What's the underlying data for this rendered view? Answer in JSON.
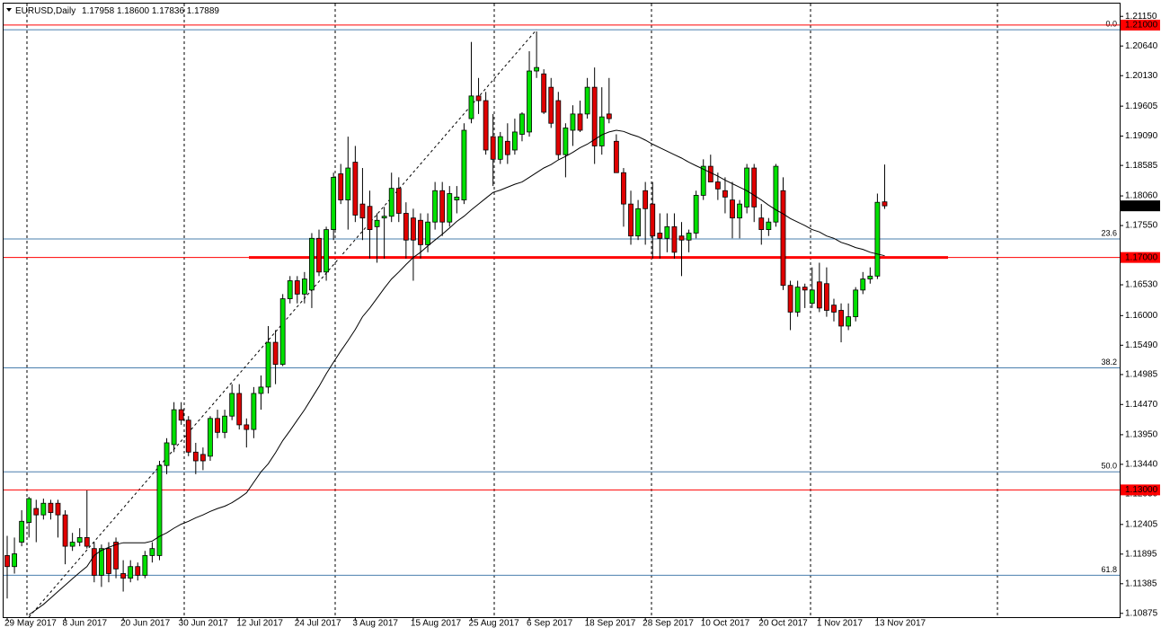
{
  "header": {
    "symbol": "EURUSD,Daily",
    "ohlc": "1.17958 1.18600 1.17836 1.17889"
  },
  "chart_data": {
    "type": "candlestick",
    "categories": [
      "29 May 2017",
      null,
      null,
      null,
      null,
      null,
      null,
      null,
      "8 Jun 2017",
      null,
      null,
      null,
      null,
      null,
      null,
      null,
      "20 Jun 2017",
      null,
      null,
      null,
      null,
      null,
      null,
      null,
      "30 Jun 2017",
      null,
      null,
      null,
      null,
      null,
      null,
      null,
      "12 Jul 2017",
      null,
      null,
      null,
      null,
      null,
      null,
      null,
      "24 Jul 2017",
      null,
      null,
      null,
      null,
      null,
      null,
      null,
      "3 Aug 2017",
      null,
      null,
      null,
      null,
      null,
      null,
      null,
      "15 Aug 2017",
      null,
      null,
      null,
      null,
      null,
      null,
      null,
      "25 Aug 2017",
      null,
      null,
      null,
      null,
      null,
      null,
      null,
      "6 Sep 2017",
      null,
      null,
      null,
      null,
      null,
      null,
      null,
      "18 Sep 2017",
      null,
      null,
      null,
      null,
      null,
      null,
      null,
      "28 Sep 2017",
      null,
      null,
      null,
      null,
      null,
      null,
      null,
      "10 Oct 2017",
      null,
      null,
      null,
      null,
      null,
      null,
      null,
      "20 Oct 2017",
      null,
      null,
      null,
      null,
      null,
      null,
      null,
      "1 Nov 2017",
      null,
      null,
      null,
      null,
      null,
      null,
      null,
      "13 Nov 2017",
      null
    ],
    "open": [
      1.1187,
      1.1168,
      1.121,
      1.1244,
      1.1268,
      1.1257,
      1.1277,
      1.1277,
      1.1257,
      1.1203,
      1.121,
      1.1218,
      1.1199,
      1.1153,
      1.1199,
      1.121,
      1.1156,
      1.1148,
      1.1168,
      1.1153,
      1.1187,
      1.1187,
      1.1342,
      1.1378,
      1.1438,
      1.142,
      1.1365,
      1.1361,
      1.1358,
      1.1423,
      1.1399,
      1.1427,
      1.1466,
      1.1412,
      1.1404,
      1.1466,
      1.1477,
      1.1554,
      1.1516,
      1.1629,
      1.166,
      1.1637,
      1.1644,
      1.1733,
      1.1675,
      1.1748,
      1.1844,
      1.1799,
      1.1864,
      1.1792,
      1.1788,
      1.1753,
      1.1768,
      1.1771,
      1.1819,
      1.1776,
      1.1768,
      1.1764,
      1.1722,
      1.1761,
      1.1815,
      1.1761,
      1.1799,
      1.1799,
      1.1939,
      1.1978,
      1.197,
      1.1908,
      1.1869,
      1.19,
      1.1885,
      1.1912,
      1.1916,
      1.2021,
      1.2016,
      1.1993,
      1.197,
      1.1877,
      1.1919,
      1.1947,
      1.1947,
      1.1993,
      1.1892,
      1.1947,
      1.19,
      1.1846,
      1.1792,
      1.1737,
      1.1815,
      1.1792,
      1.1742,
      1.1733,
      1.1753,
      1.1737,
      1.173,
      1.1742,
      1.1807,
      1.1857,
      1.183,
      1.1815,
      1.1799,
      1.1768,
      1.1787,
      1.1854,
      1.1768,
      1.1748,
      1.1761,
      1.1815,
      1.1652,
      1.1606,
      1.1649,
      1.1621,
      1.1658,
      1.1655,
      1.1618,
      1.1609,
      1.1582,
      1.1598,
      1.1644,
      1.1663,
      1.1668,
      1.17958
    ],
    "high": [
      1.1221,
      1.1218,
      1.1265,
      1.1288,
      1.1283,
      1.1285,
      1.1283,
      1.1283,
      1.1265,
      1.1226,
      1.1234,
      1.1299,
      1.121,
      1.1206,
      1.121,
      1.1218,
      1.1179,
      1.1179,
      1.1175,
      1.1195,
      1.121,
      1.135,
      1.1389,
      1.1451,
      1.1451,
      1.1427,
      1.1381,
      1.1373,
      1.1427,
      1.1438,
      1.1438,
      1.1482,
      1.1482,
      1.1423,
      1.1477,
      1.1497,
      1.1582,
      1.1575,
      1.1637,
      1.1668,
      1.1668,
      1.1675,
      1.1742,
      1.1748,
      1.1753,
      1.1846,
      1.1861,
      1.1908,
      1.1892,
      1.1854,
      1.1815,
      1.1776,
      1.1787,
      1.1846,
      1.1838,
      1.1795,
      1.1784,
      1.1776,
      1.1776,
      1.183,
      1.183,
      1.1823,
      1.1823,
      1.1931,
      1.2071,
      1.2009,
      1.1985,
      1.1947,
      1.1916,
      1.1931,
      1.1939,
      1.195,
      1.2055,
      1.2089,
      1.2024,
      1.2009,
      1.1985,
      1.1931,
      1.1962,
      1.197,
      1.2009,
      1.2027,
      1.1993,
      1.2009,
      1.1912,
      1.1854,
      1.1815,
      1.1799,
      1.183,
      1.183,
      1.1776,
      1.1776,
      1.1776,
      1.1761,
      1.1748,
      1.1815,
      1.1869,
      1.1877,
      1.1846,
      1.1838,
      1.183,
      1.1799,
      1.1861,
      1.1861,
      1.1792,
      1.1768,
      1.1861,
      1.1838,
      1.166,
      1.166,
      1.1655,
      1.1683,
      1.1691,
      1.1683,
      1.1629,
      1.1621,
      1.1621,
      1.1649,
      1.1675,
      1.1683,
      1.181,
      1.186
    ],
    "low": [
      1.1113,
      1.1156,
      1.1203,
      1.1218,
      1.121,
      1.1249,
      1.1249,
      1.1218,
      1.1172,
      1.1195,
      1.1203,
      1.1199,
      1.1141,
      1.1133,
      1.1141,
      1.1148,
      1.1125,
      1.1141,
      1.1144,
      1.1148,
      1.1175,
      1.1179,
      1.1327,
      1.1365,
      1.1412,
      1.1358,
      1.1327,
      1.1334,
      1.135,
      1.1389,
      1.1389,
      1.142,
      1.1404,
      1.1373,
      1.1389,
      1.1438,
      1.1466,
      1.1482,
      1.1513,
      1.1621,
      1.1621,
      1.1621,
      1.1613,
      1.1668,
      1.166,
      1.173,
      1.1792,
      1.1748,
      1.1761,
      1.173,
      1.1698,
      1.1691,
      1.1698,
      1.1761,
      1.1761,
      1.1698,
      1.166,
      1.1698,
      1.1709,
      1.1748,
      1.1737,
      1.1753,
      1.1776,
      1.1792,
      1.1931,
      1.1947,
      1.1877,
      1.1823,
      1.1861,
      1.1861,
      1.1877,
      1.19,
      1.1908,
      1.2009,
      1.1947,
      1.1923,
      1.1869,
      1.1838,
      1.1892,
      1.1916,
      1.1939,
      1.1861,
      1.1877,
      1.1931,
      1.1846,
      1.1753,
      1.1722,
      1.173,
      1.1722,
      1.1698,
      1.1698,
      1.1709,
      1.1698,
      1.1668,
      1.1709,
      1.1733,
      1.1799,
      1.183,
      1.1799,
      1.1776,
      1.1733,
      1.1733,
      1.1776,
      1.1761,
      1.1722,
      1.1737,
      1.1753,
      1.1644,
      1.1575,
      1.1598,
      1.1613,
      1.1613,
      1.1606,
      1.1598,
      1.159,
      1.1554,
      1.1575,
      1.159,
      1.1637,
      1.1655,
      1.1663,
      1.17836
    ],
    "close": [
      1.1168,
      1.119,
      1.1246,
      1.1285,
      1.1257,
      1.1277,
      1.1261,
      1.1257,
      1.1203,
      1.121,
      1.1218,
      1.1203,
      1.1153,
      1.1199,
      1.1156,
      1.1164,
      1.1148,
      1.1168,
      1.1153,
      1.1187,
      1.1199,
      1.1342,
      1.1381,
      1.1438,
      1.142,
      1.1365,
      1.135,
      1.135,
      1.1423,
      1.1399,
      1.1427,
      1.1466,
      1.1412,
      1.1404,
      1.1466,
      1.1477,
      1.1554,
      1.1516,
      1.1629,
      1.166,
      1.1637,
      1.1663,
      1.1733,
      1.1675,
      1.1748,
      1.1838,
      1.1799,
      1.1854,
      1.1773,
      1.1768,
      1.1748,
      1.1764,
      1.1771,
      1.1819,
      1.1776,
      1.173,
      1.173,
      1.1722,
      1.1761,
      1.1815,
      1.1761,
      1.181,
      1.1804,
      1.1919,
      1.1978,
      1.197,
      1.1885,
      1.1869,
      1.1908,
      1.1877,
      1.1916,
      1.1947,
      1.2021,
      1.2027,
      1.195,
      1.1931,
      1.1877,
      1.1923,
      1.1947,
      1.1919,
      1.1993,
      1.1892,
      1.1942,
      1.1939,
      1.1846,
      1.1792,
      1.1737,
      1.1784,
      1.1784,
      1.1737,
      1.1733,
      1.1753,
      1.1709,
      1.173,
      1.1742,
      1.1807,
      1.1857,
      1.183,
      1.1818,
      1.1804,
      1.1768,
      1.1792,
      1.1854,
      1.1787,
      1.1748,
      1.1761,
      1.1857,
      1.1652,
      1.1606,
      1.1649,
      1.1644,
      1.1644,
      1.1613,
      1.1609,
      1.1606,
      1.1582,
      1.1598,
      1.1644,
      1.1663,
      1.1668,
      1.1795,
      1.17889
    ],
    "up_color": "#00e000",
    "down_color": "#e00000",
    "ma": {
      "color": "#000000",
      "values": [
        null,
        null,
        null,
        1.1085,
        1.1094,
        1.1103,
        1.1114,
        1.1125,
        1.1136,
        1.1147,
        1.1158,
        1.1168,
        1.1187,
        1.1196,
        1.1201,
        1.1206,
        1.1209,
        1.1209,
        1.1209,
        1.1209,
        1.1212,
        1.122,
        1.1226,
        1.1234,
        1.1241,
        1.1246,
        1.1252,
        1.1257,
        1.1263,
        1.1268,
        1.1272,
        1.1278,
        1.1286,
        1.1295,
        1.1313,
        1.1331,
        1.1345,
        1.1364,
        1.1385,
        1.1402,
        1.142,
        1.1438,
        1.1458,
        1.1478,
        1.15,
        1.152,
        1.1539,
        1.1557,
        1.1576,
        1.1598,
        1.1613,
        1.163,
        1.1647,
        1.1663,
        1.1675,
        1.1688,
        1.17,
        1.1709,
        1.172,
        1.173,
        1.174,
        1.1751,
        1.1762,
        1.1771,
        1.1782,
        1.1792,
        1.1802,
        1.1812,
        1.1816,
        1.1821,
        1.1826,
        1.183,
        1.1838,
        1.1846,
        1.1854,
        1.186,
        1.1868,
        1.1874,
        1.1881,
        1.1889,
        1.1895,
        1.1903,
        1.1911,
        1.1916,
        1.1919,
        1.1917,
        1.1912,
        1.1908,
        1.1902,
        1.1895,
        1.1889,
        1.1883,
        1.1877,
        1.1871,
        1.1864,
        1.1858,
        1.1852,
        1.1846,
        1.184,
        1.1833,
        1.1827,
        1.1821,
        1.1815,
        1.1807,
        1.1799,
        1.179,
        1.1782,
        1.1775,
        1.1767,
        1.1761,
        1.1755,
        1.1748,
        1.1744,
        1.1737,
        1.1733,
        1.1726,
        1.1722,
        1.1717,
        1.1714,
        1.1709,
        1.1706,
        1.1703
      ]
    },
    "ylim": [
      1.1081,
      1.2137
    ],
    "yticks": [
      {
        "value": 1.2115,
        "label": "1.21150"
      },
      {
        "value": 1.2064,
        "label": "1.20640"
      },
      {
        "value": 1.2013,
        "label": "1.20130"
      },
      {
        "value": 1.19605,
        "label": "1.19605"
      },
      {
        "value": 1.1909,
        "label": "1.19090"
      },
      {
        "value": 1.18585,
        "label": "1.18585"
      },
      {
        "value": 1.1806,
        "label": "1.18060"
      },
      {
        "value": 1.1755,
        "label": "1.17550"
      },
      {
        "value": 1.1653,
        "label": "1.16530"
      },
      {
        "value": 1.16,
        "label": "1.16000"
      },
      {
        "value": 1.1549,
        "label": "1.15490"
      },
      {
        "value": 1.14985,
        "label": "1.14985"
      },
      {
        "value": 1.1447,
        "label": "1.14470"
      },
      {
        "value": 1.1395,
        "label": "1.13950"
      },
      {
        "value": 1.1344,
        "label": "1.13440"
      },
      {
        "value": 1.1293,
        "label": "1.12930"
      },
      {
        "value": 1.12405,
        "label": "1.12405"
      },
      {
        "value": 1.11895,
        "label": "1.11895"
      },
      {
        "value": 1.11385,
        "label": "1.11385"
      },
      {
        "value": 1.10875,
        "label": "1.10875"
      }
    ],
    "levels": [
      {
        "value": 1.21,
        "label": "1.21000"
      },
      {
        "value": 1.17,
        "label": "1.17000"
      },
      {
        "value": 1.13,
        "label": "1.13000"
      }
    ],
    "level_color": "#ff0000",
    "fib_levels": [
      {
        "value": 1.2092,
        "label": "0.0"
      },
      {
        "value": 1.1732,
        "label": "23.6"
      },
      {
        "value": 1.151,
        "label": "38.2"
      },
      {
        "value": 1.1331,
        "label": "50.0"
      },
      {
        "value": 1.1153,
        "label": "61.8"
      }
    ],
    "fib_color": "#4a7fae",
    "last_price": {
      "value": 1.17889,
      "label": "1.17889"
    }
  }
}
